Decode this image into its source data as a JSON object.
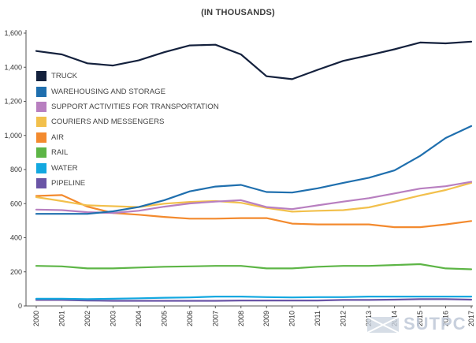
{
  "chart_data": {
    "type": "line",
    "title": "(IN THOUSANDS)",
    "xlabel": "",
    "ylabel": "",
    "ylim": [
      0,
      1600
    ],
    "yticks": [
      0,
      200,
      400,
      600,
      800,
      1000,
      1200,
      1400,
      1600
    ],
    "ytick_labels": [
      "0",
      "200",
      "400",
      "600",
      "800",
      "1,000",
      "1,200",
      "1,400",
      "1,600"
    ],
    "categories": [
      "2000",
      "2001",
      "2002",
      "2003",
      "2004",
      "2005",
      "2006",
      "2007",
      "2008",
      "2009",
      "2010",
      "2011",
      "2012",
      "2013",
      "2014",
      "2015",
      "2016",
      "2017"
    ],
    "grid": false,
    "legend_position": "upper-left",
    "series": [
      {
        "name": "TRUCK",
        "color": "#14213d",
        "values": [
          1495,
          1475,
          1423,
          1410,
          1440,
          1488,
          1528,
          1532,
          1475,
          1347,
          1330,
          1385,
          1437,
          1470,
          1505,
          1545,
          1540,
          1550
        ]
      },
      {
        "name": "WAREHOUSING AND STORAGE",
        "color": "#1f6fae",
        "values": [
          540,
          540,
          540,
          555,
          580,
          620,
          672,
          700,
          710,
          668,
          665,
          690,
          722,
          752,
          795,
          880,
          985,
          1055
        ]
      },
      {
        "name": "SUPPORT ACTIVITIES FOR TRANSPORTATION",
        "color": "#b87fc0",
        "values": [
          565,
          562,
          550,
          545,
          558,
          582,
          601,
          612,
          620,
          580,
          568,
          590,
          612,
          632,
          660,
          688,
          702,
          728
        ]
      },
      {
        "name": "COURIERS AND MESSENGERS",
        "color": "#f2c04c",
        "values": [
          638,
          615,
          590,
          585,
          580,
          600,
          610,
          615,
          605,
          575,
          553,
          558,
          562,
          578,
          612,
          648,
          680,
          722
        ]
      },
      {
        "name": "AIR",
        "color": "#f38a2e",
        "values": [
          645,
          650,
          582,
          545,
          535,
          522,
          512,
          512,
          515,
          515,
          483,
          478,
          478,
          478,
          462,
          462,
          478,
          498
        ]
      },
      {
        "name": "RAIL",
        "color": "#5db546",
        "values": [
          235,
          232,
          220,
          220,
          225,
          230,
          232,
          235,
          235,
          220,
          220,
          230,
          235,
          235,
          240,
          245,
          220,
          215
        ]
      },
      {
        "name": "WATER",
        "color": "#13a8e0",
        "values": [
          42,
          42,
          40,
          42,
          45,
          48,
          50,
          55,
          55,
          52,
          50,
          52,
          52,
          55,
          55,
          55,
          55,
          55
        ]
      },
      {
        "name": "PIPELINE",
        "color": "#6a55a6",
        "values": [
          35,
          35,
          32,
          30,
          30,
          30,
          30,
          30,
          32,
          32,
          32,
          32,
          35,
          35,
          37,
          40,
          40,
          37
        ]
      }
    ]
  },
  "watermark": {
    "text": "SUTPC",
    "color": "#c6d0dc"
  }
}
